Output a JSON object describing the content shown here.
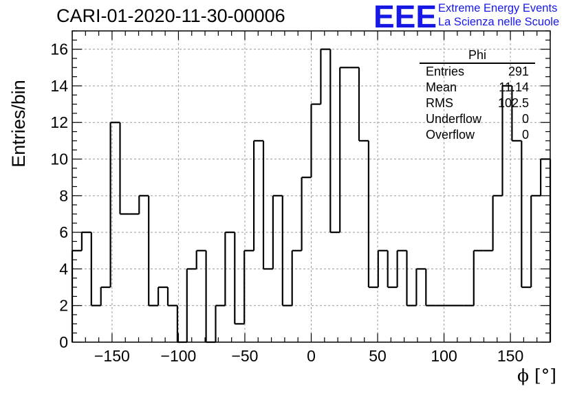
{
  "title": "CARI-01-2020-11-30-00006",
  "logo": {
    "mark": "EEE",
    "line1": "Extreme Energy Events",
    "line2": "La Scienza nelle Scuole",
    "color": "#1717e6"
  },
  "stats": {
    "title": "Phi",
    "rows": [
      {
        "label": "Entries",
        "value": "291"
      },
      {
        "label": "Mean",
        "value": "11.14"
      },
      {
        "label": "RMS",
        "value": "102.5"
      },
      {
        "label": "Underflow",
        "value": "0"
      },
      {
        "label": "Overflow",
        "value": "0"
      }
    ]
  },
  "chart_data": {
    "type": "bar",
    "style": "step-histogram",
    "title": "CARI-01-2020-11-30-00006",
    "xlabel": "ϕ [°]",
    "ylabel": "Entries/bin",
    "xlim": [
      -180,
      180
    ],
    "ylim": [
      0,
      17
    ],
    "xticks": [
      -150,
      -100,
      -50,
      0,
      50,
      100,
      150
    ],
    "yticks": [
      0,
      2,
      4,
      6,
      8,
      10,
      12,
      14,
      16
    ],
    "grid": true,
    "bin_width": 7.2,
    "bin_edges_start": -180,
    "values": [
      5,
      6,
      2,
      3,
      12,
      7,
      7,
      8,
      2,
      3,
      2,
      0,
      4,
      5,
      0,
      2,
      6,
      1,
      5,
      11,
      4,
      8,
      2,
      5,
      9,
      13,
      16,
      6,
      15,
      15,
      11,
      3,
      5,
      3,
      5,
      2,
      4,
      2,
      2,
      2,
      2,
      2,
      5,
      5,
      8,
      14,
      11,
      3,
      8,
      10
    ]
  }
}
